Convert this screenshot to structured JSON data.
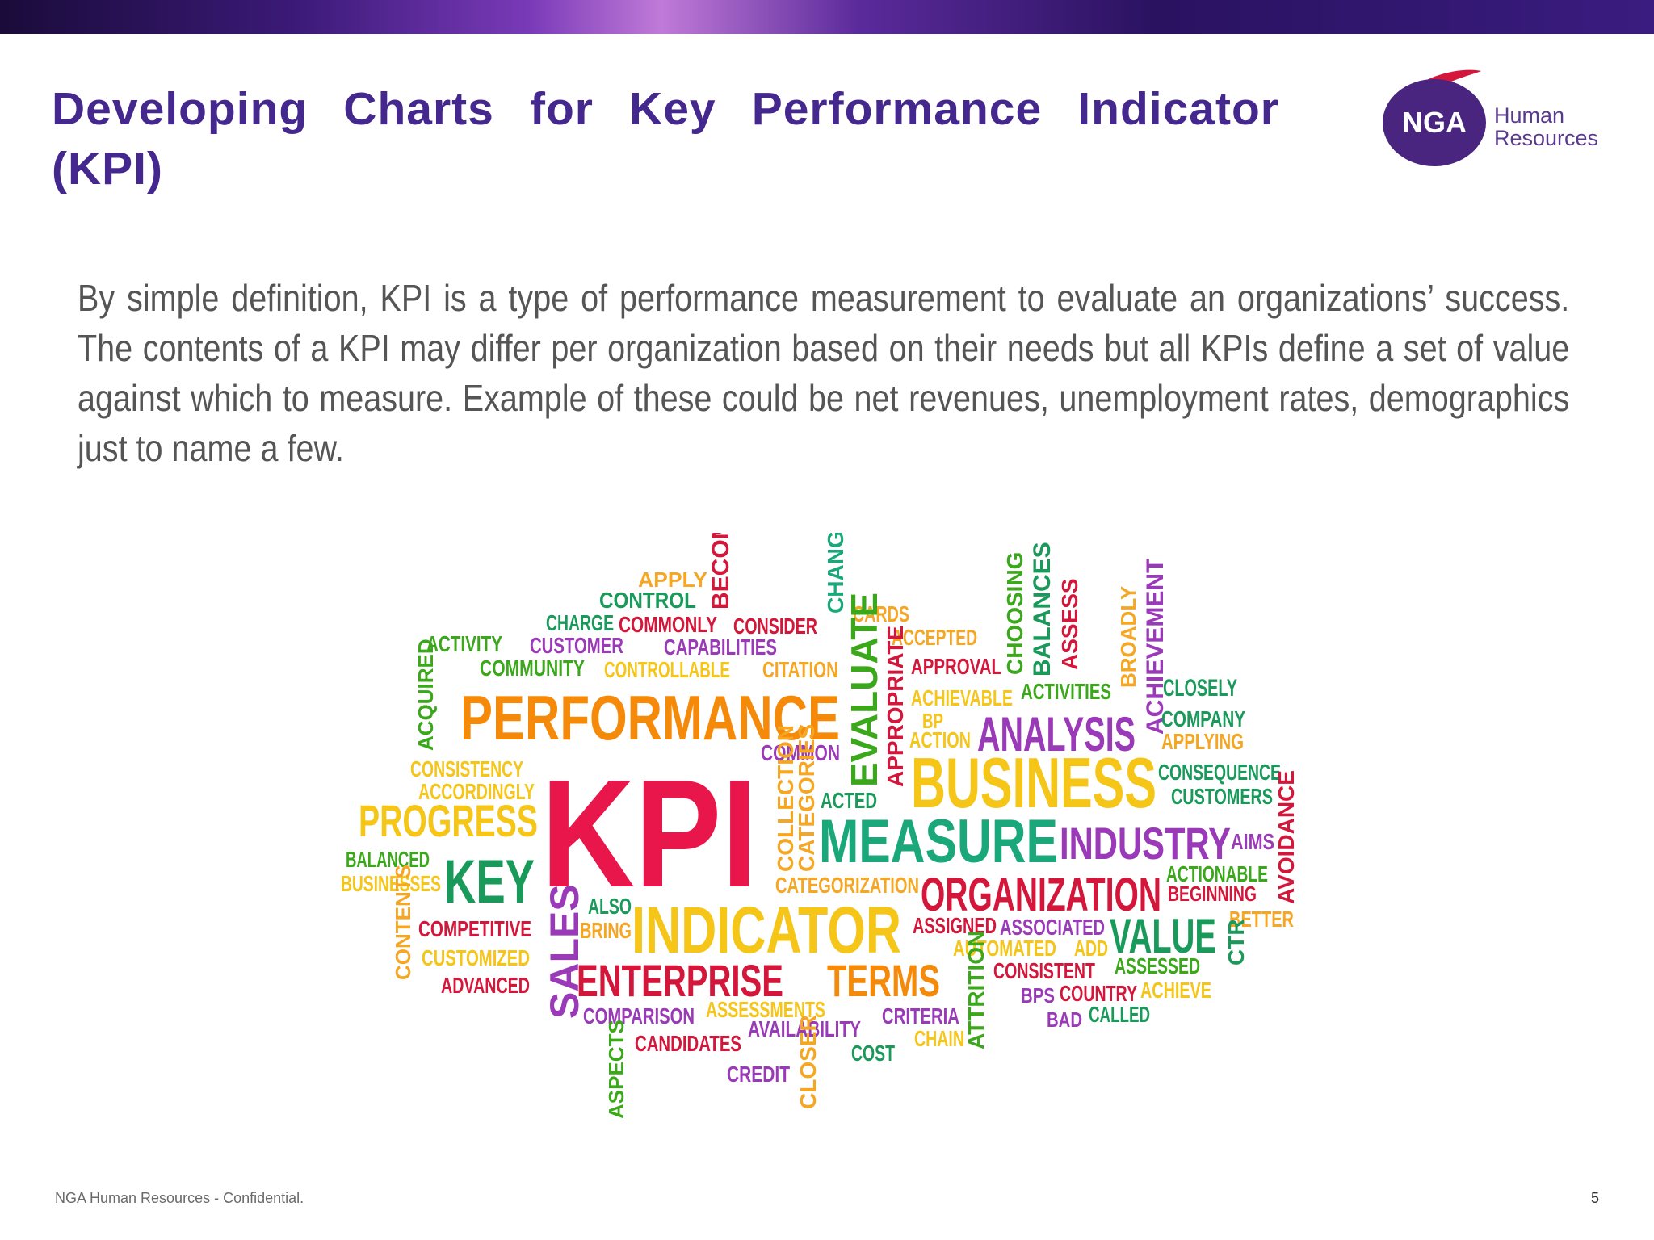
{
  "slide": {
    "title": "Developing Charts for Key Performance Indicator (KPI)",
    "body": "By simple definition, KPI is a type of performance measurement to evaluate an organizations’ success. The contents of a KPI may differ per organization based on their needs but all KPIs define a set of value against which to measure. Example of these could be net revenues, unemployment rates, demographics just to name a few.",
    "footer": "NGA Human Resources - Confidential.",
    "page_number": "5"
  },
  "logo": {
    "mark": "NGA",
    "line1": "Human",
    "line2": "Resources"
  },
  "colors": {
    "title": "#44288e",
    "brand_purple": "#5a2a8e",
    "brand_red": "#d4163a"
  },
  "word_cloud": {
    "words": [
      {
        "text": "APPLY",
        "color": "#f5a623"
      },
      {
        "text": "CONTROL",
        "color": "#1a9a5a"
      },
      {
        "text": "BECOME",
        "color": "#d4163a"
      },
      {
        "text": "CHANGE",
        "color": "#1aa87a"
      },
      {
        "text": "CHARGE",
        "color": "#1a9a5a"
      },
      {
        "text": "COMMONLY",
        "color": "#d4163a"
      },
      {
        "text": "CONSIDER",
        "color": "#d4163a"
      },
      {
        "text": "CARDS",
        "color": "#f5a623"
      },
      {
        "text": "ACTIVITY",
        "color": "#3aa81a"
      },
      {
        "text": "CUSTOMER",
        "color": "#9a3ab8"
      },
      {
        "text": "CAPABILITIES",
        "color": "#9a3ab8"
      },
      {
        "text": "ACCEPTED",
        "color": "#f5a623"
      },
      {
        "text": "COMMUNITY",
        "color": "#3aa81a"
      },
      {
        "text": "CONTROLLABLE",
        "color": "#f5c518"
      },
      {
        "text": "CITATION",
        "color": "#f5a623"
      },
      {
        "text": "APPROVAL",
        "color": "#d4163a"
      },
      {
        "text": "CHOOSING",
        "color": "#3aa81a"
      },
      {
        "text": "BALANCES",
        "color": "#1a9a5a"
      },
      {
        "text": "ASSESS",
        "color": "#d4163a"
      },
      {
        "text": "BROADLY",
        "color": "#f5a623"
      },
      {
        "text": "ACHIEVEMENT",
        "color": "#9a3ab8"
      },
      {
        "text": "CLOSELY",
        "color": "#1a9a5a"
      },
      {
        "text": "ACQUIRED",
        "color": "#3aa81a"
      },
      {
        "text": "PERFORMANCE",
        "color": "#f58a0a"
      },
      {
        "text": "EVALUATE",
        "color": "#3aa81a"
      },
      {
        "text": "APPROPRIATE",
        "color": "#d4163a"
      },
      {
        "text": "ACHIEVABLE",
        "color": "#f5c518"
      },
      {
        "text": "ACTIVITIES",
        "color": "#3aa81a"
      },
      {
        "text": "COMPANY",
        "color": "#1a9a5a"
      },
      {
        "text": "BP",
        "color": "#f5c518"
      },
      {
        "text": "ACTION",
        "color": "#f5c518"
      },
      {
        "text": "ANALYSIS",
        "color": "#9a3ab8"
      },
      {
        "text": "APPLYING",
        "color": "#f5a623"
      },
      {
        "text": "COMMON",
        "color": "#9a3ab8"
      },
      {
        "text": "CONSISTENCY",
        "color": "#f5c518"
      },
      {
        "text": "ACCORDINGLY",
        "color": "#f5c518"
      },
      {
        "text": "KPI",
        "color": "#e8164a"
      },
      {
        "text": "COLLECTION",
        "color": "#f5a623"
      },
      {
        "text": "CATEGORIES",
        "color": "#f5a623"
      },
      {
        "text": "ACTED",
        "color": "#1a9a5a"
      },
      {
        "text": "BUSINESS",
        "color": "#f5c518"
      },
      {
        "text": "CONSEQUENCE",
        "color": "#1a9a5a"
      },
      {
        "text": "CUSTOMERS",
        "color": "#1a9a5a"
      },
      {
        "text": "PROGRESS",
        "color": "#f5c518"
      },
      {
        "text": "MEASURE",
        "color": "#1aa87a"
      },
      {
        "text": "INDUSTRY",
        "color": "#9a3ab8"
      },
      {
        "text": "AIMS",
        "color": "#9a3ab8"
      },
      {
        "text": "AVOIDANCE",
        "color": "#d4163a"
      },
      {
        "text": "BALANCED",
        "color": "#3aa81a"
      },
      {
        "text": "BUSINESSES",
        "color": "#f5c518"
      },
      {
        "text": "KEY",
        "color": "#1a9a5a"
      },
      {
        "text": "CATEGORIZATION",
        "color": "#f5a623"
      },
      {
        "text": "ORGANIZATION",
        "color": "#d4163a"
      },
      {
        "text": "ACTIONABLE",
        "color": "#3aa81a"
      },
      {
        "text": "BEGINNING",
        "color": "#d4163a"
      },
      {
        "text": "ALSO",
        "color": "#1a9a5a"
      },
      {
        "text": "CONTENTS",
        "color": "#f5a623"
      },
      {
        "text": "COMPETITIVE",
        "color": "#d4163a"
      },
      {
        "text": "SALES",
        "color": "#9a3ab8"
      },
      {
        "text": "BRING",
        "color": "#f5a623"
      },
      {
        "text": "INDICATOR",
        "color": "#f5c518"
      },
      {
        "text": "ASSIGNED",
        "color": "#d4163a"
      },
      {
        "text": "ASSOCIATED",
        "color": "#9a3ab8"
      },
      {
        "text": "VALUE",
        "color": "#1a9a5a"
      },
      {
        "text": "BETTER",
        "color": "#f5a623"
      },
      {
        "text": "CTR",
        "color": "#1a9a5a"
      },
      {
        "text": "CUSTOMIZED",
        "color": "#f5c518"
      },
      {
        "text": "AUTOMATED",
        "color": "#f5c518"
      },
      {
        "text": "ADD",
        "color": "#f5c518"
      },
      {
        "text": "ADVANCED",
        "color": "#d4163a"
      },
      {
        "text": "ENTERPRISE",
        "color": "#d4163a"
      },
      {
        "text": "TERMS",
        "color": "#f58a0a"
      },
      {
        "text": "CONSISTENT",
        "color": "#d4163a"
      },
      {
        "text": "ASSESSED",
        "color": "#3aa81a"
      },
      {
        "text": "BPS",
        "color": "#9a3ab8"
      },
      {
        "text": "COUNTRY",
        "color": "#d4163a"
      },
      {
        "text": "ACHIEVE",
        "color": "#f5c518"
      },
      {
        "text": "ATTRITION",
        "color": "#3aa81a"
      },
      {
        "text": "COMPARISON",
        "color": "#9a3ab8"
      },
      {
        "text": "ASSESSMENTS",
        "color": "#f5c518"
      },
      {
        "text": "CRITERIA",
        "color": "#9a3ab8"
      },
      {
        "text": "BAD",
        "color": "#9a3ab8"
      },
      {
        "text": "CALLED",
        "color": "#1a9a5a"
      },
      {
        "text": "AVAILABILITY",
        "color": "#9a3ab8"
      },
      {
        "text": "CHAIN",
        "color": "#f5c518"
      },
      {
        "text": "ASPECTS",
        "color": "#3aa81a"
      },
      {
        "text": "CANDIDATES",
        "color": "#d4163a"
      },
      {
        "text": "COST",
        "color": "#1a9a5a"
      },
      {
        "text": "CLOSER",
        "color": "#f5a623"
      },
      {
        "text": "CREDIT",
        "color": "#9a3ab8"
      }
    ]
  }
}
